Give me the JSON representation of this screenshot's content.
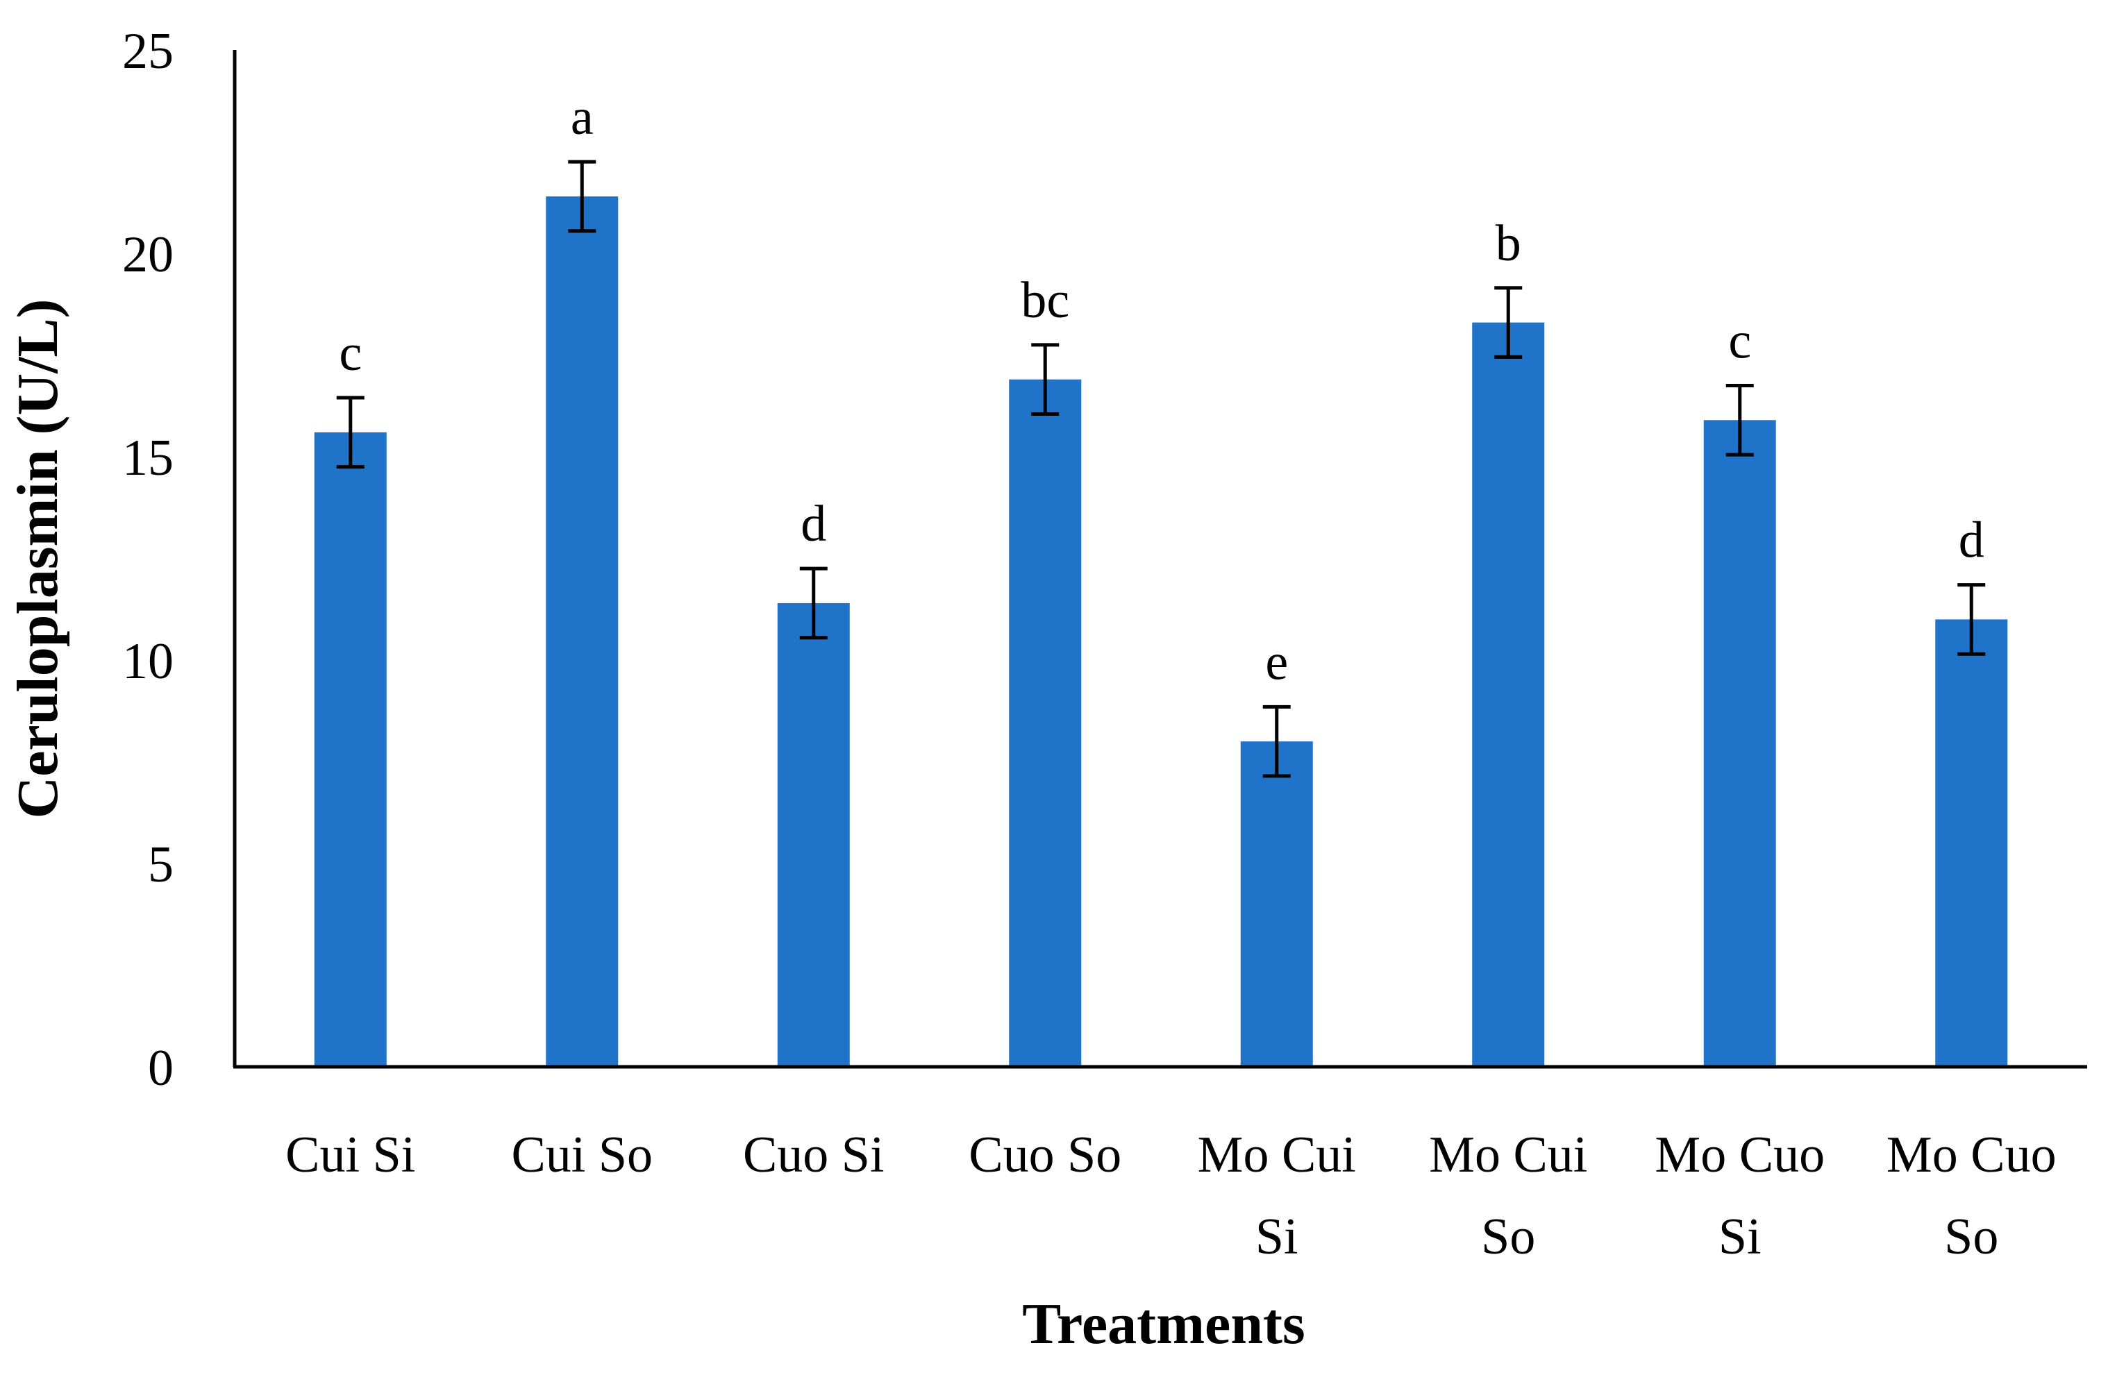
{
  "chart_data": {
    "type": "bar",
    "categories": [
      [
        "Cui Si"
      ],
      [
        "Cui So"
      ],
      [
        "Cuo Si"
      ],
      [
        "Cuo So"
      ],
      [
        "Mo Cui",
        "Si"
      ],
      [
        "Mo Cui",
        "So"
      ],
      [
        "Mo Cuo",
        "Si"
      ],
      [
        "Mo Cuo",
        "So"
      ]
    ],
    "values": [
      15.6,
      21.4,
      11.4,
      16.9,
      8.0,
      18.3,
      15.9,
      11.0
    ],
    "error": [
      0.85,
      0.85,
      0.85,
      0.85,
      0.85,
      0.85,
      0.85,
      0.85
    ],
    "significance_letters": [
      "c",
      "a",
      "d",
      "bc",
      "e",
      "b",
      "c",
      "d"
    ],
    "xlabel": "Treatments",
    "ylabel": "Ceruloplasmin (U/L)",
    "ylim": [
      0,
      25
    ],
    "yticks": [
      0,
      5,
      10,
      15,
      20,
      25
    ],
    "bar_color": "#1F73C9",
    "error_bar_color": "#000000",
    "grid": false,
    "legend": "none"
  }
}
